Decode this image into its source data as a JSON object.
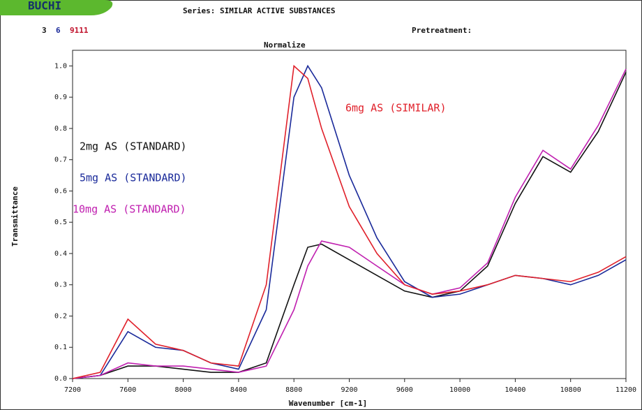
{
  "header": {
    "logo": "BUCHI",
    "series": "Series: SIMILAR ACTIVE SUBSTANCES",
    "ids": [
      "3",
      "6",
      "9111"
    ],
    "pretreatment": "Pretreatment:"
  },
  "chart_data": {
    "type": "line",
    "title": "Normalize",
    "x_label": "Wavenumber [cm-1]",
    "y_label": "Transmittance",
    "x": [
      7200,
      7400,
      7600,
      7800,
      8000,
      8200,
      8400,
      8600,
      8800,
      8900,
      9000,
      9200,
      9400,
      9600,
      9800,
      10000,
      10200,
      10400,
      10600,
      10800,
      11000,
      11200
    ],
    "series": [
      {
        "name": "2mg AS (STANDARD)",
        "color": "#111111",
        "values": [
          0,
          0.01,
          0.04,
          0.04,
          0.03,
          0.02,
          0.02,
          0.05,
          0.3,
          0.42,
          0.43,
          0.38,
          0.33,
          0.28,
          0.26,
          0.28,
          0.36,
          0.56,
          0.71,
          0.66,
          0.79,
          0.98
        ]
      },
      {
        "name": "5mg AS (STANDARD)",
        "color": "#1a2a9a",
        "values": [
          0,
          0.01,
          0.15,
          0.1,
          0.09,
          0.05,
          0.03,
          0.22,
          0.9,
          1.0,
          0.93,
          0.65,
          0.45,
          0.31,
          0.26,
          0.27,
          0.3,
          0.33,
          0.32,
          0.3,
          0.33,
          0.38
        ]
      },
      {
        "name": "10mg AS (STANDARD)",
        "color": "#c020b0",
        "values": [
          0,
          0.01,
          0.05,
          0.04,
          0.04,
          0.03,
          0.02,
          0.04,
          0.22,
          0.36,
          0.44,
          0.42,
          0.36,
          0.3,
          0.27,
          0.29,
          0.37,
          0.58,
          0.73,
          0.67,
          0.81,
          0.99
        ]
      },
      {
        "name": "6mg AS (SIMILAR)",
        "color": "#e0202a",
        "values": [
          0,
          0.02,
          0.19,
          0.11,
          0.09,
          0.05,
          0.04,
          0.3,
          1.0,
          0.96,
          0.8,
          0.55,
          0.4,
          0.3,
          0.27,
          0.28,
          0.3,
          0.33,
          0.32,
          0.31,
          0.34,
          0.39
        ]
      }
    ],
    "xlim": [
      7200,
      11200
    ],
    "xticks": [
      7200,
      7600,
      8000,
      8400,
      8800,
      9200,
      9600,
      10000,
      10400,
      10800,
      11200
    ],
    "ylim": [
      0,
      1.05
    ],
    "yticks": [
      {
        "value": 0,
        "label": "0.0"
      },
      0.1,
      0.2,
      0.3,
      0.4,
      0.5,
      0.6,
      0.7,
      0.8,
      0.9,
      {
        "value": 1,
        "label": "1.0"
      }
    ]
  }
}
